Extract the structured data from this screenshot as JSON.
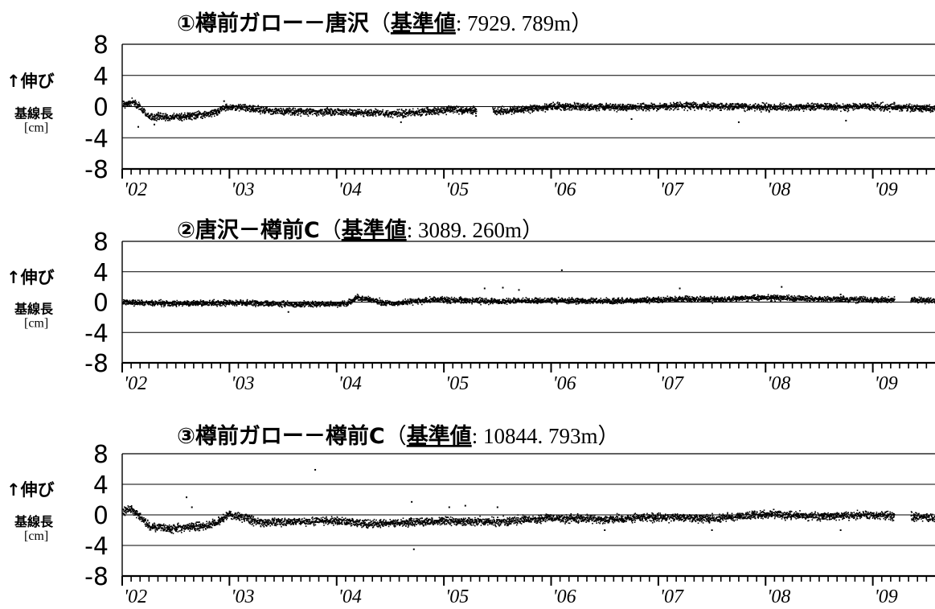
{
  "chart_data": [
    {
      "type": "scatter",
      "title": "①樽前ガロー－唐沢（基準値: 7929. 789m）",
      "title_parts": {
        "main": "①樽前ガロー－唐沢",
        "open": "（",
        "ref_label": "基準値",
        "colon": ":",
        "ref_value": " 7929. 789m",
        "close": "）"
      },
      "ylabel": "基線長",
      "ylabel_arrow": "↑伸び",
      "yunit": "[cm]",
      "yticks": [
        "8",
        "4",
        "0",
        "-4",
        "-8"
      ],
      "ylim": [
        -8,
        8
      ],
      "xlim": [
        2002.0,
        2009.58
      ],
      "xticks": [
        {
          "label": "'02",
          "year": 2002
        },
        {
          "label": "'03",
          "year": 2003
        },
        {
          "label": "'04",
          "year": 2004
        },
        {
          "label": "'05",
          "year": 2005
        },
        {
          "label": "'06",
          "year": 2006
        },
        {
          "label": "'07",
          "year": 2007
        },
        {
          "label": "'08",
          "year": 2008
        },
        {
          "label": "'09",
          "year": 2009
        }
      ],
      "grid": "horizontal",
      "series": [
        {
          "color": "#000000",
          "trend": [
            [
              2002.0,
              0.2
            ],
            [
              2002.1,
              0.6
            ],
            [
              2002.25,
              -1.2
            ],
            [
              2002.45,
              -1.4
            ],
            [
              2002.8,
              -1.0
            ],
            [
              2003.0,
              0.0
            ],
            [
              2003.4,
              -0.6
            ],
            [
              2004.0,
              -0.7
            ],
            [
              2004.6,
              -0.9
            ],
            [
              2005.0,
              -0.4
            ],
            [
              2005.5,
              -0.6
            ],
            [
              2006.0,
              0.0
            ],
            [
              2006.7,
              -0.1
            ],
            [
              2007.3,
              0.1
            ],
            [
              2008.0,
              -0.1
            ],
            [
              2009.0,
              0.0
            ],
            [
              2009.58,
              -0.3
            ]
          ],
          "scatter_sd": 0.28,
          "gaps": [
            [
              2005.3,
              2005.45
            ]
          ],
          "outliers": [
            [
              2002.15,
              -2.6
            ],
            [
              2002.3,
              -2.3
            ],
            [
              2002.95,
              0.7
            ],
            [
              2004.6,
              -2.0
            ],
            [
              2005.3,
              -1.2
            ],
            [
              2006.75,
              -1.6
            ],
            [
              2007.75,
              -2.0
            ],
            [
              2008.75,
              -1.8
            ],
            [
              2009.2,
              0.5
            ]
          ]
        }
      ]
    },
    {
      "type": "scatter",
      "title": "②唐沢－樽前C（基準値: 3089. 260m）",
      "title_parts": {
        "main": "②唐沢－樽前C",
        "open": "（",
        "ref_label": "基準値",
        "colon": ":",
        "ref_value": " 3089. 260m",
        "close": "）"
      },
      "ylabel": "基線長",
      "ylabel_arrow": "↑伸び",
      "yunit": "[cm]",
      "yticks": [
        "8",
        "4",
        "0",
        "-4",
        "-8"
      ],
      "ylim": [
        -8,
        8
      ],
      "xlim": [
        2002.0,
        2009.58
      ],
      "xticks": [
        {
          "label": "'02",
          "year": 2002
        },
        {
          "label": "'03",
          "year": 2003
        },
        {
          "label": "'04",
          "year": 2004
        },
        {
          "label": "'05",
          "year": 2005
        },
        {
          "label": "'06",
          "year": 2006
        },
        {
          "label": "'07",
          "year": 2007
        },
        {
          "label": "'08",
          "year": 2008
        },
        {
          "label": "'09",
          "year": 2009
        }
      ],
      "grid": "horizontal",
      "series": [
        {
          "color": "#000000",
          "trend": [
            [
              2002.0,
              0.0
            ],
            [
              2002.5,
              -0.2
            ],
            [
              2003.0,
              -0.1
            ],
            [
              2003.6,
              -0.3
            ],
            [
              2004.1,
              -0.2
            ],
            [
              2004.18,
              0.6
            ],
            [
              2004.5,
              -0.2
            ],
            [
              2004.9,
              0.3
            ],
            [
              2005.4,
              0.1
            ],
            [
              2006.0,
              0.2
            ],
            [
              2006.5,
              0.1
            ],
            [
              2007.2,
              0.4
            ],
            [
              2007.5,
              0.3
            ],
            [
              2008.0,
              0.6
            ],
            [
              2008.5,
              0.4
            ],
            [
              2009.58,
              0.2
            ]
          ],
          "scatter_sd": 0.22,
          "gaps": [
            [
              2009.2,
              2009.35
            ]
          ],
          "outliers": [
            [
              2005.38,
              1.8
            ],
            [
              2005.55,
              1.9
            ],
            [
              2005.7,
              1.6
            ],
            [
              2006.1,
              4.2
            ],
            [
              2007.2,
              1.8
            ],
            [
              2008.15,
              2.0
            ],
            [
              2003.55,
              -1.3
            ],
            [
              2008.7,
              1.0
            ]
          ]
        }
      ]
    },
    {
      "type": "scatter",
      "title": "③樽前ガロー－樽前C（基準値: 10844. 793m）",
      "title_parts": {
        "main": "③樽前ガロー－樽前C",
        "open": "（",
        "ref_label": "基準値",
        "colon": ":",
        "ref_value": " 10844. 793m",
        "close": "）"
      },
      "ylabel": "基線長",
      "ylabel_arrow": "↑伸び",
      "yunit": "[cm]",
      "yticks": [
        "8",
        "4",
        "0",
        "-4",
        "-8"
      ],
      "ylim": [
        -8,
        8
      ],
      "xlim": [
        2002.0,
        2009.58
      ],
      "xticks": [
        {
          "label": "'02",
          "year": 2002
        },
        {
          "label": "'03",
          "year": 2003
        },
        {
          "label": "'04",
          "year": 2004
        },
        {
          "label": "'05",
          "year": 2005
        },
        {
          "label": "'06",
          "year": 2006
        },
        {
          "label": "'07",
          "year": 2007
        },
        {
          "label": "'08",
          "year": 2008
        },
        {
          "label": "'09",
          "year": 2009
        }
      ],
      "grid": "horizontal",
      "series": [
        {
          "color": "#000000",
          "trend": [
            [
              2002.0,
              0.3
            ],
            [
              2002.08,
              0.8
            ],
            [
              2002.25,
              -1.5
            ],
            [
              2002.45,
              -1.8
            ],
            [
              2002.8,
              -1.4
            ],
            [
              2003.0,
              0.0
            ],
            [
              2003.3,
              -1.0
            ],
            [
              2004.0,
              -0.8
            ],
            [
              2004.3,
              -1.2
            ],
            [
              2005.0,
              -0.8
            ],
            [
              2005.5,
              -0.9
            ],
            [
              2006.0,
              -0.4
            ],
            [
              2006.5,
              -0.6
            ],
            [
              2007.0,
              -0.3
            ],
            [
              2007.5,
              -0.5
            ],
            [
              2008.0,
              0.1
            ],
            [
              2008.5,
              -0.2
            ],
            [
              2009.0,
              0.0
            ],
            [
              2009.58,
              -0.4
            ]
          ],
          "scatter_sd": 0.32,
          "gaps": [
            [
              2009.2,
              2009.35
            ]
          ],
          "outliers": [
            [
              2003.8,
              5.9
            ],
            [
              2002.6,
              2.3
            ],
            [
              2004.7,
              1.7
            ],
            [
              2004.72,
              -4.5
            ],
            [
              2005.2,
              1.2
            ],
            [
              2005.5,
              1.0
            ],
            [
              2002.65,
              1.0
            ],
            [
              2006.5,
              -2.0
            ],
            [
              2007.5,
              -2.0
            ],
            [
              2008.7,
              -2.0
            ],
            [
              2005.05,
              1.0
            ]
          ]
        }
      ]
    }
  ]
}
